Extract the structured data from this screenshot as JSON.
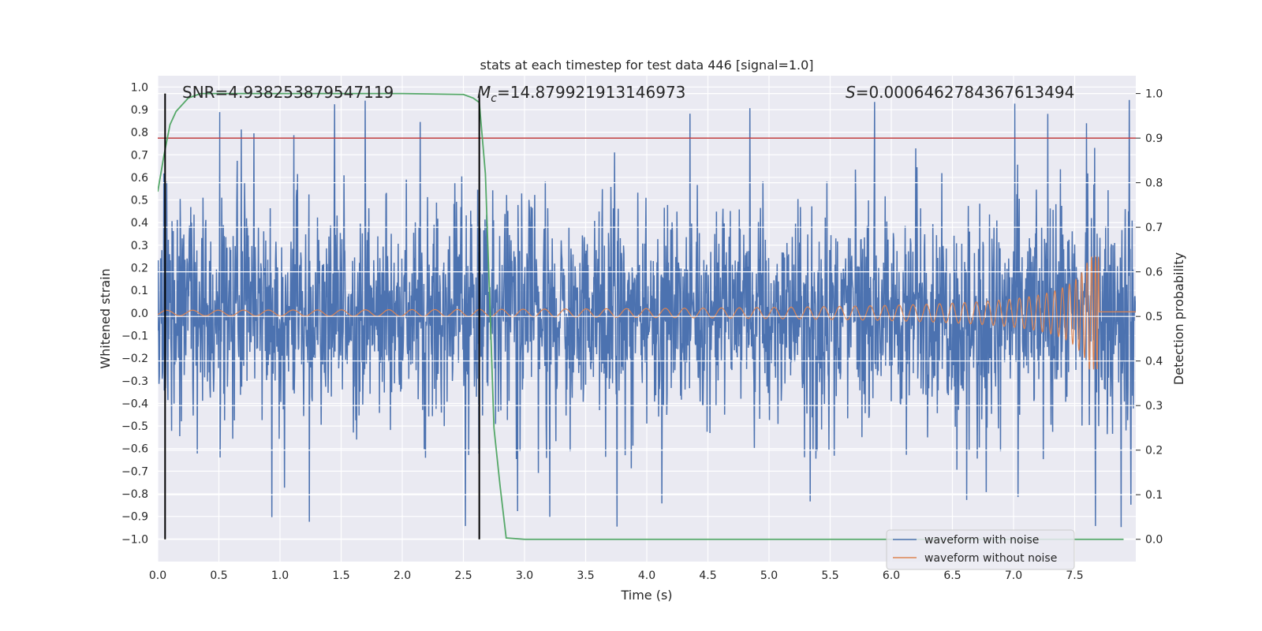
{
  "chart_data": {
    "type": "line",
    "title": "stats at each timestep for test data 446 [signal=1.0]",
    "xlabel": "Time (s)",
    "ylabel_left": "Whitened strain",
    "ylabel_right": "Detection probability",
    "xlim": [
      0.0,
      8.0
    ],
    "ylim_left": [
      -1.1,
      1.05
    ],
    "ylim_right": [
      -0.05,
      1.04
    ],
    "x_ticks": [
      "0.0",
      "0.5",
      "1.0",
      "1.5",
      "2.0",
      "2.5",
      "3.0",
      "3.5",
      "4.0",
      "4.5",
      "5.0",
      "5.5",
      "6.0",
      "6.5",
      "7.0",
      "7.5"
    ],
    "left_ticks": [
      "1.0",
      "0.9",
      "0.8",
      "0.7",
      "0.6",
      "0.5",
      "0.4",
      "0.3",
      "0.2",
      "0.1",
      "0.0",
      "−0.1",
      "−0.2",
      "−0.3",
      "−0.4",
      "−0.5",
      "−0.6",
      "−0.7",
      "−0.8",
      "−0.9",
      "−1.0"
    ],
    "right_ticks": [
      "1.0",
      "0.9",
      "0.8",
      "0.7",
      "0.6",
      "0.5",
      "0.4",
      "0.3",
      "0.2",
      "0.1",
      "0.0"
    ],
    "annotations": {
      "snr": "SNR=4.938253879547119",
      "mc_symbol": "M",
      "mc_subscript": "c",
      "mc_value": "=14.879921913146973",
      "s_symbol": "S",
      "s_value": "=0.0006462784367613494"
    },
    "vertical_lines_x": [
      0.06,
      2.63
    ],
    "threshold": {
      "axis": "right",
      "value": 0.9,
      "color": "#c03d3e"
    },
    "series": [
      {
        "name": "waveform with noise",
        "axis": "left",
        "color": "#4c72b0",
        "description": "noise, roughly within ±0.5 with spikes to ±1.0"
      },
      {
        "name": "waveform without noise",
        "axis": "left",
        "color": "#dd8452",
        "chirp_end_time": 7.7,
        "peak_amplitude": 0.25
      },
      {
        "axis": "right",
        "color": "#55a868",
        "x": [
          0.0,
          0.05,
          0.1,
          0.15,
          0.25,
          0.35,
          0.5,
          1.0,
          2.0,
          2.5,
          2.58,
          2.63,
          2.68,
          2.72,
          2.75,
          2.8,
          2.85,
          3.0,
          4.0,
          5.0,
          6.0,
          7.0,
          7.9
        ],
        "y": [
          0.78,
          0.86,
          0.93,
          0.96,
          0.99,
          1.0,
          1.0,
          1.0,
          1.0,
          0.998,
          0.99,
          0.98,
          0.82,
          0.5,
          0.25,
          0.12,
          0.003,
          0.0,
          0.0,
          0.0,
          0.0,
          0.0,
          0.0
        ]
      }
    ],
    "legend": {
      "placement": "lower-right",
      "entries": [
        "waveform with noise",
        "waveform without noise"
      ]
    },
    "grid": true
  }
}
